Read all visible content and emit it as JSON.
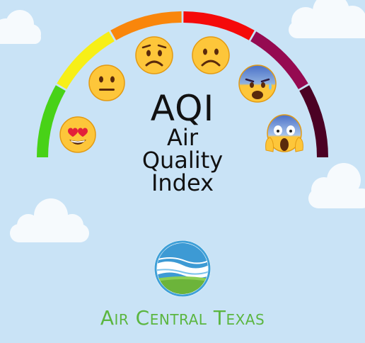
{
  "title": {
    "abbreviation": "AQI",
    "line1": "Air",
    "line2": "Quality",
    "line3": "Index"
  },
  "brand": {
    "name": "Air Central Texas"
  },
  "gauge": {
    "segments": [
      {
        "color": "#48d217"
      },
      {
        "color": "#f7ef17"
      },
      {
        "color": "#f9860b"
      },
      {
        "color": "#f50a0a"
      },
      {
        "color": "#950a51"
      },
      {
        "color": "#4b0124"
      }
    ]
  },
  "emoji_faces": [
    "heart-eyes-face-icon",
    "neutral-face-icon",
    "worried-face-icon",
    "frowning-face-icon",
    "fearful-sweat-face-icon",
    "screaming-face-icon"
  ]
}
